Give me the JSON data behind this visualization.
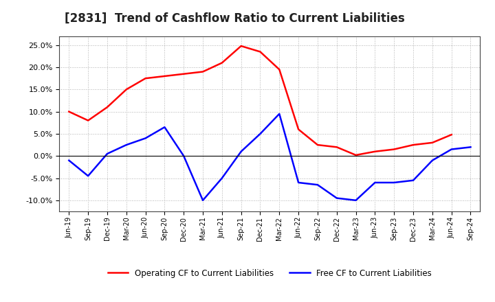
{
  "title": "[2831]  Trend of Cashflow Ratio to Current Liabilities",
  "x_labels": [
    "Jun-19",
    "Sep-19",
    "Dec-19",
    "Mar-20",
    "Jun-20",
    "Sep-20",
    "Dec-20",
    "Mar-21",
    "Jun-21",
    "Sep-21",
    "Dec-21",
    "Mar-22",
    "Jun-22",
    "Sep-22",
    "Dec-22",
    "Mar-23",
    "Jun-23",
    "Sep-23",
    "Dec-23",
    "Mar-24",
    "Jun-24",
    "Sep-24"
  ],
  "operating_cf": [
    0.1,
    0.08,
    0.11,
    0.15,
    0.175,
    0.18,
    0.185,
    0.19,
    0.21,
    0.248,
    0.235,
    0.195,
    0.06,
    0.025,
    0.02,
    0.002,
    0.01,
    0.015,
    0.025,
    0.03,
    0.048,
    null
  ],
  "free_cf": [
    -0.01,
    -0.045,
    0.005,
    0.025,
    0.04,
    0.065,
    0.0,
    -0.1,
    -0.05,
    0.01,
    0.05,
    0.095,
    -0.06,
    -0.065,
    -0.095,
    -0.1,
    -0.06,
    -0.06,
    -0.055,
    -0.01,
    0.015,
    0.02
  ],
  "operating_color": "#ff0000",
  "free_color": "#0000ff",
  "ylim": [
    -0.125,
    0.27
  ],
  "yticks": [
    -0.1,
    -0.05,
    0.0,
    0.05,
    0.1,
    0.15,
    0.2,
    0.25
  ],
  "background_color": "#ffffff",
  "grid_color": "#b0b0b0",
  "title_fontsize": 12,
  "legend_labels": [
    "Operating CF to Current Liabilities",
    "Free CF to Current Liabilities"
  ]
}
